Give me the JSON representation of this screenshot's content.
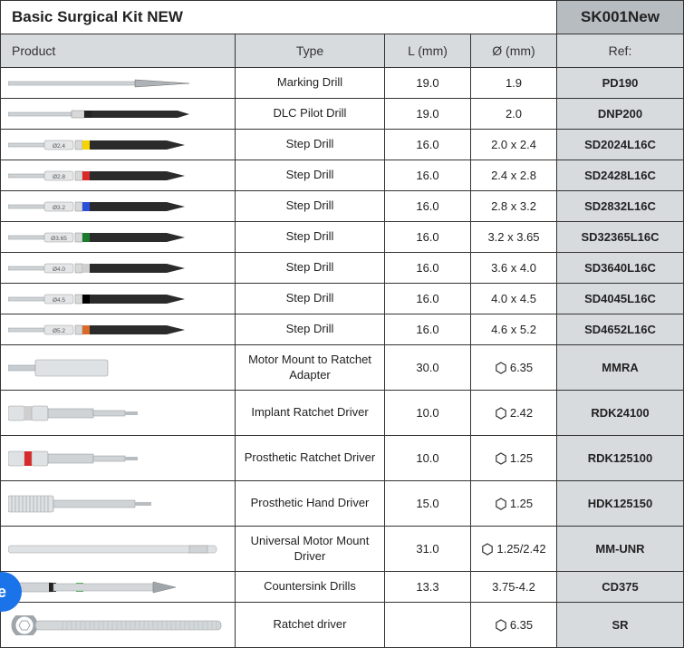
{
  "header": {
    "title": "Basic Surgical Kit NEW",
    "sku": "SK001New"
  },
  "columns": {
    "product": "Product",
    "type": "Type",
    "length": "L (mm)",
    "diameter": "Ø (mm)",
    "ref": "Ref:"
  },
  "colors": {
    "header_bg": "#ffffff",
    "sku_bg": "#b7bcc1",
    "col_bg": "#d7dbde",
    "ref_bg": "#d7dbde",
    "border": "#333333",
    "metal": "#bfc5c9",
    "metal_dark": "#8e9498",
    "shaft": "#d0d4d7"
  },
  "rows": [
    {
      "tool": "marking",
      "band": null,
      "size_label": null,
      "type": "Marking Drill",
      "length": "19.0",
      "diameter": "1.9",
      "hex": false,
      "ref": "PD190",
      "tall": false
    },
    {
      "tool": "pilot",
      "band": "#222222",
      "size_label": null,
      "type": "DLC Pilot Drill",
      "length": "19.0",
      "diameter": "2.0",
      "hex": false,
      "ref": "DNP200",
      "tall": false
    },
    {
      "tool": "step",
      "band": "#f5d400",
      "size_label": "Ø2.4",
      "type": "Step Drill",
      "length": "16.0",
      "diameter": "2.0 x 2.4",
      "hex": false,
      "ref": "SD2024L16C",
      "tall": false
    },
    {
      "tool": "step",
      "band": "#d82a2a",
      "size_label": "Ø2.8",
      "type": "Step Drill",
      "length": "16.0",
      "diameter": "2.4 x 2.8",
      "hex": false,
      "ref": "SD2428L16C",
      "tall": false
    },
    {
      "tool": "step",
      "band": "#2a4fd8",
      "size_label": "Ø3.2",
      "type": "Step Drill",
      "length": "16.0",
      "diameter": "2.8 x 3.2",
      "hex": false,
      "ref": "SD2832L16C",
      "tall": false
    },
    {
      "tool": "step",
      "band": "#1a7a2e",
      "size_label": "Ø3.65",
      "type": "Step Drill",
      "length": "16.0",
      "diameter": "3.2 x 3.65",
      "hex": false,
      "ref": "SD32365L16C",
      "tall": false
    },
    {
      "tool": "step",
      "band": "#cfcfcf",
      "size_label": "Ø4.0",
      "type": "Step Drill",
      "length": "16.0",
      "diameter": "3.6 x 4.0",
      "hex": false,
      "ref": "SD3640L16C",
      "tall": false
    },
    {
      "tool": "step",
      "band": "#000000",
      "size_label": "Ø4.5",
      "type": "Step Drill",
      "length": "16.0",
      "diameter": "4.0 x 4.5",
      "hex": false,
      "ref": "SD4045L16C",
      "tall": false
    },
    {
      "tool": "step",
      "band": "#d86a2a",
      "size_label": "Ø5.2",
      "type": "Step Drill",
      "length": "16.0",
      "diameter": "4.6 x 5.2",
      "hex": false,
      "ref": "SD4652L16C",
      "tall": false
    },
    {
      "tool": "adapter",
      "band": null,
      "size_label": null,
      "type": "Motor Mount to Ratchet Adapter",
      "length": "30.0",
      "diameter": "6.35",
      "hex": true,
      "ref": "MMRA",
      "tall": true
    },
    {
      "tool": "implant_driver",
      "band": "#cfcfcf",
      "size_label": null,
      "type": "Implant Ratchet Driver",
      "length": "10.0",
      "diameter": "2.42",
      "hex": true,
      "ref": "RDK24100",
      "tall": true
    },
    {
      "tool": "implant_driver",
      "band": "#d82a2a",
      "size_label": null,
      "type": "Prosthetic Ratchet Driver",
      "length": "10.0",
      "diameter": "1.25",
      "hex": true,
      "ref": "RDK125100",
      "tall": true
    },
    {
      "tool": "hand_driver",
      "band": null,
      "size_label": null,
      "type": "Prosthetic Hand Driver",
      "length": "15.0",
      "diameter": "1.25",
      "hex": true,
      "ref": "HDK125150",
      "tall": true
    },
    {
      "tool": "universal",
      "band": null,
      "size_label": null,
      "type": "Universal Motor Mount Driver",
      "length": "31.0",
      "diameter": "1.25/2.42",
      "hex": true,
      "ref": "MM-UNR",
      "tall": true
    },
    {
      "tool": "countersink",
      "band": "#3fb24f",
      "size_label": null,
      "type": "Countersink Drills",
      "length": "13.3",
      "diameter": "3.75-4.2",
      "hex": false,
      "ref": "CD375",
      "tall": false
    },
    {
      "tool": "ratchet",
      "band": null,
      "size_label": null,
      "type": "Ratchet driver",
      "length": "",
      "diameter": "6.35",
      "hex": true,
      "ref": "SR",
      "tall": true
    }
  ]
}
